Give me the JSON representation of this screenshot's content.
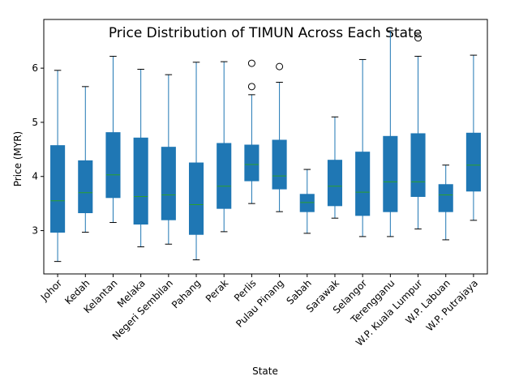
{
  "chart_data": {
    "type": "box",
    "title": "Price Distribution of TIMUN Across Each State",
    "xlabel": "State",
    "ylabel": "Price (MYR)",
    "ylim": [
      2.2,
      6.9
    ],
    "yticks": [
      3,
      4,
      5,
      6
    ],
    "grid": false,
    "box_color": "#1f77b4",
    "median_color": "#2ca02c",
    "categories": [
      "Johor",
      "Kedah",
      "Kelantan",
      "Melaka",
      "Negeri Sembilan",
      "Pahang",
      "Perak",
      "Perlis",
      "Pulau Pinang",
      "Sabah",
      "Sarawak",
      "Selangor",
      "Terengganu",
      "W.P. Kuala Lumpur",
      "W.P. Labuan",
      "W.P. Putrajaya"
    ],
    "boxes": [
      {
        "whisker_low": 2.43,
        "q1": 2.97,
        "median": 3.55,
        "q3": 4.57,
        "whisker_high": 5.96,
        "outliers": []
      },
      {
        "whisker_low": 2.97,
        "q1": 3.33,
        "median": 3.7,
        "q3": 4.29,
        "whisker_high": 5.66,
        "outliers": []
      },
      {
        "whisker_low": 3.15,
        "q1": 3.61,
        "median": 4.03,
        "q3": 4.81,
        "whisker_high": 6.22,
        "outliers": []
      },
      {
        "whisker_low": 2.7,
        "q1": 3.12,
        "median": 3.63,
        "q3": 4.71,
        "whisker_high": 5.98,
        "outliers": []
      },
      {
        "whisker_low": 2.75,
        "q1": 3.2,
        "median": 3.66,
        "q3": 4.54,
        "whisker_high": 5.88,
        "outliers": []
      },
      {
        "whisker_low": 2.46,
        "q1": 2.93,
        "median": 3.48,
        "q3": 4.25,
        "whisker_high": 6.11,
        "outliers": []
      },
      {
        "whisker_low": 2.98,
        "q1": 3.41,
        "median": 3.82,
        "q3": 4.61,
        "whisker_high": 6.12,
        "outliers": []
      },
      {
        "whisker_low": 3.5,
        "q1": 3.92,
        "median": 4.22,
        "q3": 4.58,
        "whisker_high": 5.51,
        "outliers": [
          5.66,
          6.09
        ]
      },
      {
        "whisker_low": 3.35,
        "q1": 3.77,
        "median": 4.01,
        "q3": 4.67,
        "whisker_high": 5.74,
        "outliers": [
          6.03
        ]
      },
      {
        "whisker_low": 2.95,
        "q1": 3.35,
        "median": 3.52,
        "q3": 3.67,
        "whisker_high": 4.13,
        "outliers": []
      },
      {
        "whisker_low": 3.23,
        "q1": 3.46,
        "median": 3.82,
        "q3": 4.3,
        "whisker_high": 5.1,
        "outliers": []
      },
      {
        "whisker_low": 2.89,
        "q1": 3.28,
        "median": 3.71,
        "q3": 4.45,
        "whisker_high": 6.16,
        "outliers": []
      },
      {
        "whisker_low": 2.89,
        "q1": 3.35,
        "median": 3.9,
        "q3": 4.74,
        "whisker_high": 6.69,
        "outliers": []
      },
      {
        "whisker_low": 3.03,
        "q1": 3.63,
        "median": 3.9,
        "q3": 4.79,
        "whisker_high": 6.22,
        "outliers": [
          6.56
        ]
      },
      {
        "whisker_low": 2.83,
        "q1": 3.35,
        "median": 3.66,
        "q3": 3.85,
        "whisker_high": 4.21,
        "outliers": []
      },
      {
        "whisker_low": 3.19,
        "q1": 3.73,
        "median": 4.21,
        "q3": 4.8,
        "whisker_high": 6.24,
        "outliers": []
      }
    ]
  }
}
